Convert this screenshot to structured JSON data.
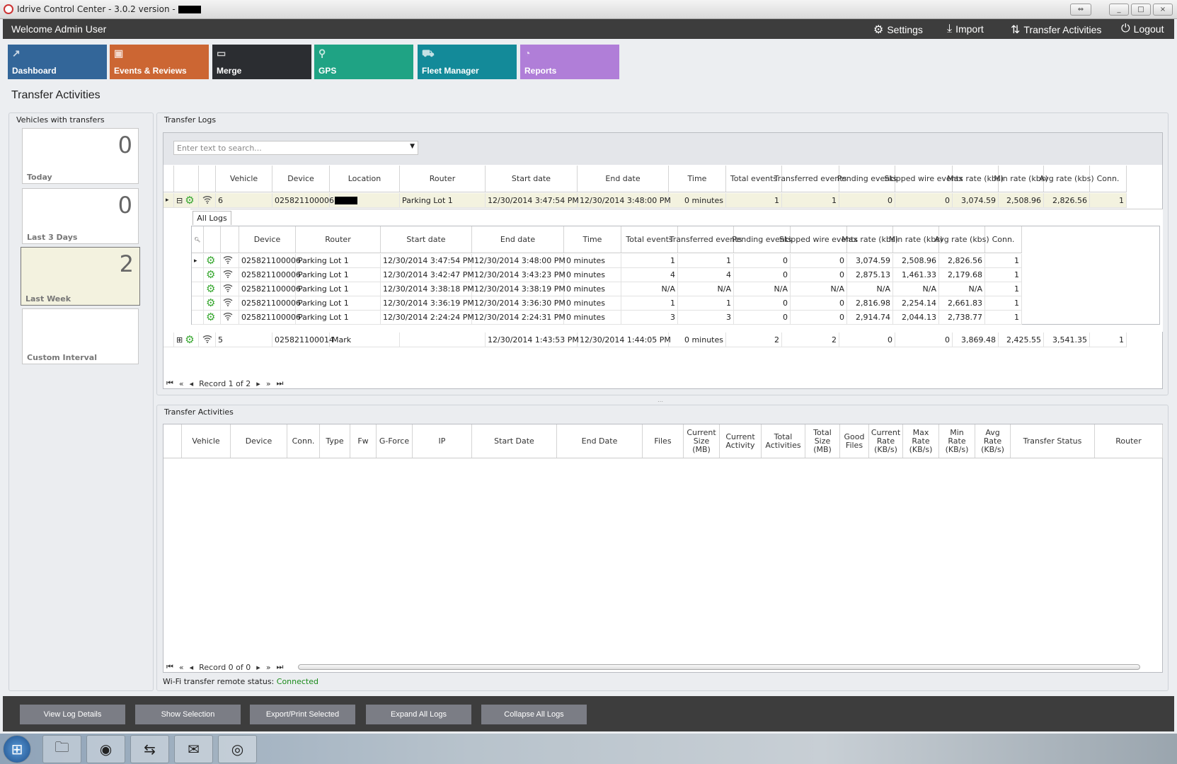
{
  "window": {
    "title": "Idrive Control Center - 3.0.2 version -",
    "restore_label": "⇔",
    "min": "_",
    "max": "□",
    "close": "×"
  },
  "header": {
    "welcome": "Welcome Admin User",
    "links": [
      {
        "label": "Settings",
        "icon": "gears-icon"
      },
      {
        "label": "Import",
        "icon": "download-icon"
      },
      {
        "label": "Transfer Activities",
        "icon": "transfer-icon"
      },
      {
        "label": "Logout",
        "icon": "power-icon"
      }
    ]
  },
  "tiles": [
    {
      "label": "Dashboard",
      "color": "#336699"
    },
    {
      "label": "Events & Reviews",
      "color": "#cc6633"
    },
    {
      "label": "Merge",
      "color": "#2b2d31"
    },
    {
      "label": "GPS",
      "color": "#1fa384"
    },
    {
      "label": "Fleet Manager",
      "color": "#138a99"
    },
    {
      "label": "Reports",
      "color": "#b07ed8"
    }
  ],
  "page_title": "Transfer Activities",
  "vehicles_panel": {
    "title": "Vehicles with transfers",
    "cards": [
      {
        "label": "Today",
        "count": "0"
      },
      {
        "label": "Last 3 Days",
        "count": "0"
      },
      {
        "label": "Last Week",
        "count": "2",
        "selected": true
      },
      {
        "label": "Custom Interval",
        "count": ""
      }
    ]
  },
  "transfer_logs": {
    "title": "Transfer Logs",
    "search_placeholder": "Enter text to search...",
    "columns": [
      "Vehicle",
      "Device",
      "Location",
      "Router",
      "Start date",
      "End date",
      "Time",
      "Total events",
      "Transferred events",
      "Pending events",
      "Skipped wire events",
      "Max rate (kbs)",
      "Min rate (kbs)",
      "Avg rate (kbs)",
      "Conn."
    ],
    "rows": [
      {
        "expanded": true,
        "cells": [
          "6",
          "025821100006",
          "",
          "Parking Lot 1",
          "12/30/2014 3:47:54 PM",
          "12/30/2014 3:48:00 PM",
          "0 minutes",
          "1",
          "1",
          "0",
          "0",
          "3,074.59",
          "2,508.96",
          "2,826.56",
          "1"
        ]
      },
      {
        "expanded": false,
        "cells": [
          "5",
          "025821100014",
          "Mark",
          "",
          "12/30/2014 1:43:53 PM",
          "12/30/2014 1:44:05 PM",
          "0 minutes",
          "2",
          "2",
          "0",
          "0",
          "3,869.48",
          "2,425.55",
          "3,541.35",
          "1"
        ]
      }
    ],
    "detail": {
      "tab": "All Logs",
      "columns": [
        "Device",
        "Router",
        "Start date",
        "End date",
        "Time",
        "Total events",
        "Transferred events",
        "Pending events",
        "Skipped wire events",
        "Max rate (kbs)",
        "Min rate (kbs)",
        "Avg rate (kbs)",
        "Conn."
      ],
      "rows": [
        [
          "025821100006",
          "Parking Lot 1",
          "12/30/2014 3:47:54 PM",
          "12/30/2014 3:48:00 PM",
          "0 minutes",
          "1",
          "1",
          "0",
          "0",
          "3,074.59",
          "2,508.96",
          "2,826.56",
          "1"
        ],
        [
          "025821100006",
          "Parking Lot 1",
          "12/30/2014 3:42:47 PM",
          "12/30/2014 3:43:23 PM",
          "0 minutes",
          "4",
          "4",
          "0",
          "0",
          "2,875.13",
          "1,461.33",
          "2,179.68",
          "1"
        ],
        [
          "025821100006",
          "Parking Lot 1",
          "12/30/2014 3:38:18 PM",
          "12/30/2014 3:38:19 PM",
          "0 minutes",
          "N/A",
          "N/A",
          "N/A",
          "N/A",
          "N/A",
          "N/A",
          "N/A",
          "1"
        ],
        [
          "025821100006",
          "Parking Lot 1",
          "12/30/2014 3:36:19 PM",
          "12/30/2014 3:36:30 PM",
          "0 minutes",
          "1",
          "1",
          "0",
          "0",
          "2,816.98",
          "2,254.14",
          "2,661.83",
          "1"
        ],
        [
          "025821100006",
          "Parking Lot 1",
          "12/30/2014 2:24:24 PM",
          "12/30/2014 2:24:31 PM",
          "0 minutes",
          "3",
          "3",
          "0",
          "0",
          "2,914.74",
          "2,044.13",
          "2,738.77",
          "1"
        ]
      ]
    },
    "record": "Record 1 of 2"
  },
  "transfer_activities": {
    "title": "Transfer Activities",
    "columns": [
      "Vehicle",
      "Device",
      "Conn.",
      "Type",
      "Fw",
      "G-Force",
      "IP",
      "Start Date",
      "End Date",
      "Files",
      "Current Size (MB)",
      "Current Activity",
      "Total Activities",
      "Total Size (MB)",
      "Good Files",
      "Current Rate (KB/s)",
      "Max Rate (KB/s)",
      "Min Rate (KB/s)",
      "Avg Rate (KB/s)",
      "Transfer Status",
      "Router"
    ],
    "record": "Record 0 of 0"
  },
  "status": {
    "label": "Wi-Fi transfer remote status:",
    "value": "Connected",
    "value_color": "#1a8a1a"
  },
  "footer_buttons": [
    "View Log Details",
    "Show Selection",
    "Export/Print Selected",
    "Expand All Logs",
    "Collapse All Logs"
  ],
  "taskbar": [
    {
      "icon": "windows-start-icon"
    },
    {
      "icon": "file-explorer-icon"
    },
    {
      "icon": "firefox-icon"
    },
    {
      "icon": "teamviewer-icon"
    },
    {
      "icon": "outlook-icon"
    },
    {
      "icon": "idrive-app-icon"
    }
  ]
}
